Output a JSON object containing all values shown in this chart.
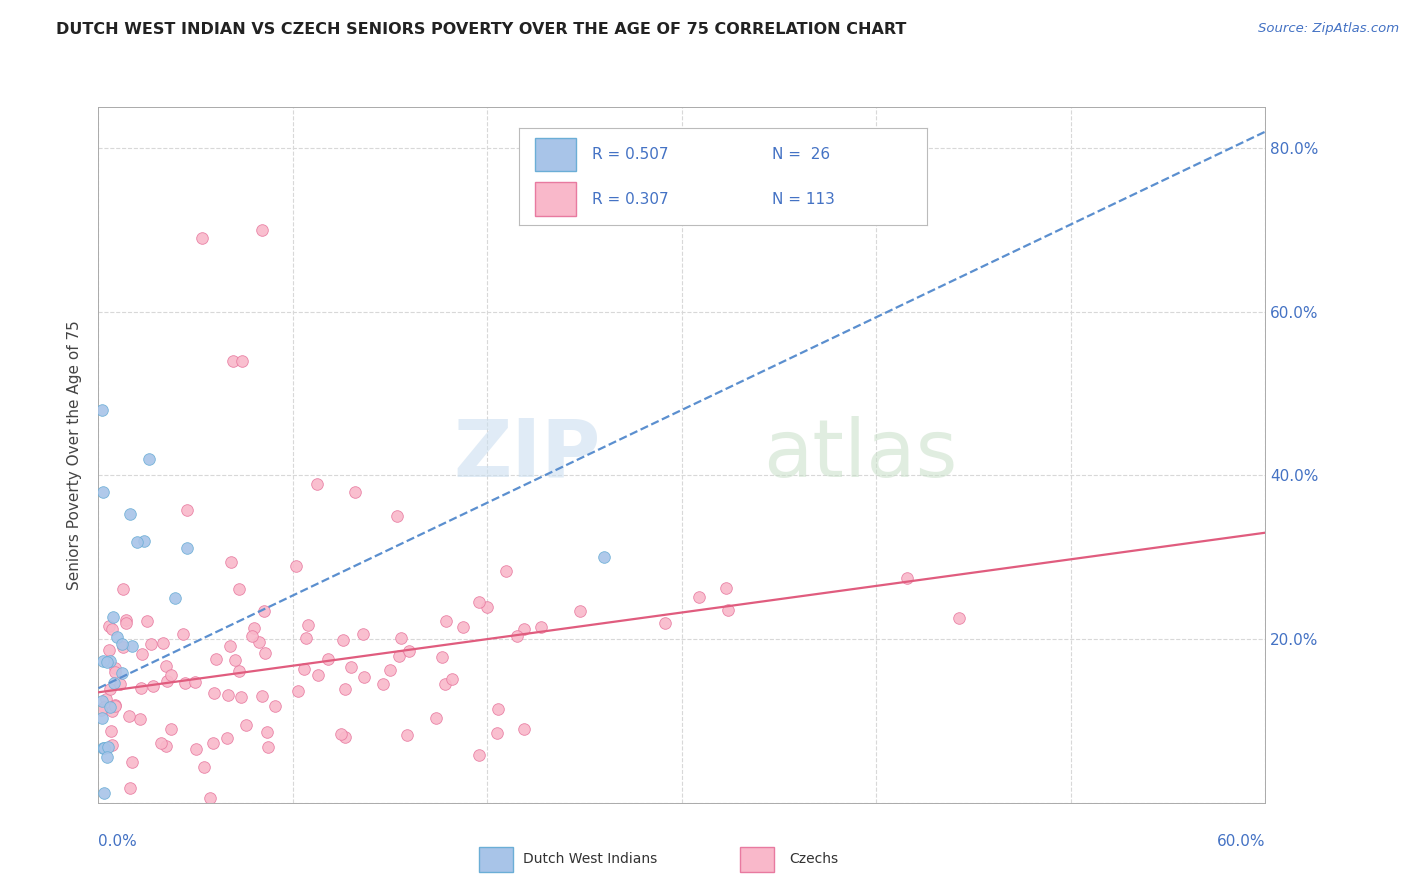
{
  "title": "DUTCH WEST INDIAN VS CZECH SENIORS POVERTY OVER THE AGE OF 75 CORRELATION CHART",
  "source": "Source: ZipAtlas.com",
  "ylabel": "Seniors Poverty Over the Age of 75",
  "xlim": [
    0.0,
    0.6
  ],
  "ylim": [
    0.0,
    0.85
  ],
  "ytick_values": [
    0.0,
    0.2,
    0.4,
    0.6,
    0.8
  ],
  "ytick_labels": [
    "",
    "20.0%",
    "40.0%",
    "60.0%",
    "80.0%"
  ],
  "xtick_label_left": "0.0%",
  "xtick_label_right": "60.0%",
  "background_color": "#ffffff",
  "grid_color": "#d8d8d8",
  "series_blue": {
    "name": "Dutch West Indians",
    "R": 0.507,
    "N": 26,
    "face_color": "#a8c4e8",
    "edge_color": "#6baed6",
    "trend_color": "#5b8fcf",
    "trend_style": "--",
    "trend_x": [
      0.0,
      0.6
    ],
    "trend_y": [
      0.14,
      0.82
    ]
  },
  "series_pink": {
    "name": "Czechs",
    "R": 0.307,
    "N": 113,
    "face_color": "#f9b8ca",
    "edge_color": "#e87aa0",
    "trend_color": "#e05c7e",
    "trend_style": "-",
    "trend_x": [
      0.0,
      0.6
    ],
    "trend_y": [
      0.135,
      0.33
    ]
  },
  "legend_text_color": "#4472c4",
  "watermark_zip_color": "#ccdff0",
  "watermark_atlas_color": "#c8dfc8",
  "title_color": "#222222",
  "source_color": "#4472c4",
  "ylabel_color": "#444444",
  "axis_label_color": "#4472c4",
  "marker_size": 70,
  "seed_blue": 42,
  "seed_pink": 17
}
